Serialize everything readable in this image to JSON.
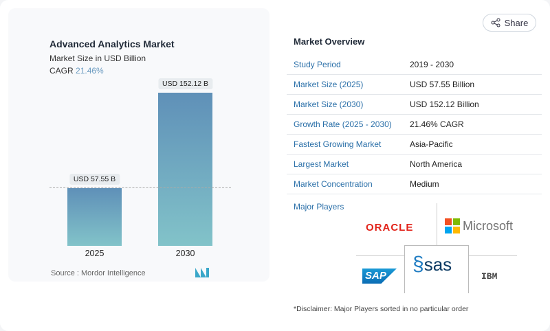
{
  "share": {
    "label": "Share",
    "icon": "share-icon"
  },
  "chart": {
    "title": "Advanced Analytics Market",
    "subtitle": "Market Size in USD Billion",
    "cagr_label": "CAGR",
    "cagr_value": "21.46%",
    "source": "Source :  Mordor Intelligence"
  },
  "chart_data": {
    "type": "bar",
    "categories": [
      "2025",
      "2030"
    ],
    "values": [
      57.55,
      152.12
    ],
    "data_labels": [
      "USD 57.55 B",
      "USD 152.12 B"
    ],
    "title": "Advanced Analytics Market",
    "subtitle": "Market Size in USD Billion",
    "colors": [
      "#5f90b8",
      "#82c3c9"
    ]
  },
  "overview": {
    "title": "Market Overview",
    "rows": [
      {
        "label": "Study Period",
        "value": "2019 - 2030"
      },
      {
        "label": "Market Size (2025)",
        "value": "USD 57.55 Billion"
      },
      {
        "label": "Market Size (2030)",
        "value": "USD 152.12 Billion"
      },
      {
        "label": "Growth Rate (2025 - 2030)",
        "value": "21.46% CAGR"
      },
      {
        "label": "Fastest Growing Market",
        "value": "Asia-Pacific"
      },
      {
        "label": "Largest Market",
        "value": "North America"
      },
      {
        "label": "Market Concentration",
        "value": "Medium"
      }
    ]
  },
  "players": {
    "title": "Major Players",
    "logos": [
      "ORACLE",
      "Microsoft",
      "SAP",
      "sas",
      "IBM"
    ]
  },
  "disclaimer": "*Disclaimer: Major Players sorted in no particular order"
}
